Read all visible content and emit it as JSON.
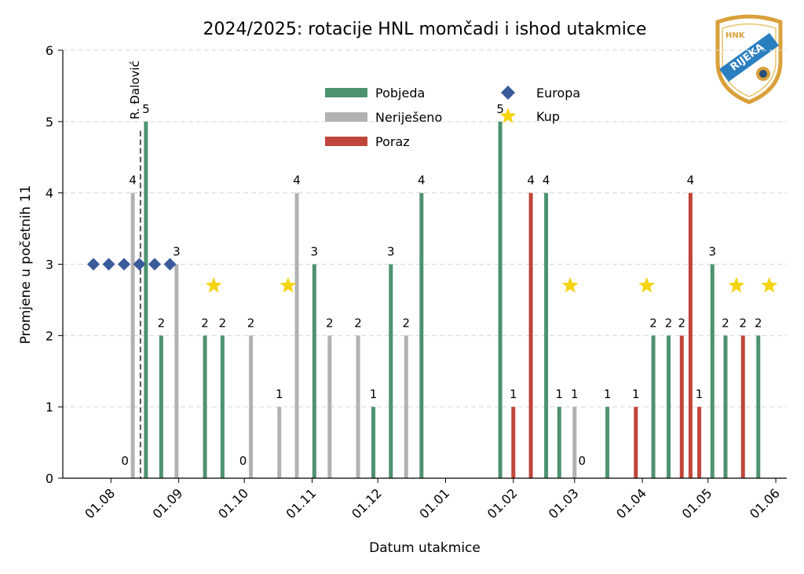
{
  "chart_data": {
    "type": "bar",
    "title": "2024/2025: rotacije HNL momčadi i ishod utakmice",
    "xlabel": "Datum utakmice",
    "ylabel": "Promjene u početnih 11",
    "ylim": [
      0,
      6
    ],
    "yticks": [
      "0",
      "1",
      "2",
      "3",
      "4",
      "5",
      "6"
    ],
    "xlim_day": [
      -5,
      326
    ],
    "xticks": [
      {
        "label": "01.08",
        "day": 17
      },
      {
        "label": "01.09",
        "day": 48
      },
      {
        "label": "01.10",
        "day": 78
      },
      {
        "label": "01.11",
        "day": 109
      },
      {
        "label": "01.12",
        "day": 139
      },
      {
        "label": "01.01",
        "day": 170
      },
      {
        "label": "01.02",
        "day": 201
      },
      {
        "label": "01.03",
        "day": 229
      },
      {
        "label": "01.04",
        "day": 260
      },
      {
        "label": "01.05",
        "day": 290
      },
      {
        "label": "01.06",
        "day": 321
      }
    ],
    "bars": [
      {
        "day": 27,
        "value": 0,
        "result": "draw"
      },
      {
        "day": 27,
        "value": 4,
        "result": "draw"
      },
      {
        "day": 33,
        "value": 5,
        "result": "win"
      },
      {
        "day": 40,
        "value": 2,
        "result": "win"
      },
      {
        "day": 47,
        "value": 3,
        "result": "draw"
      },
      {
        "day": 60,
        "value": 2,
        "result": "win"
      },
      {
        "day": 68,
        "value": 2,
        "result": "win"
      },
      {
        "day": 81,
        "value": 2,
        "result": "draw"
      },
      {
        "day": 81,
        "value": 0,
        "result": "draw"
      },
      {
        "day": 94,
        "value": 1,
        "result": "draw"
      },
      {
        "day": 102,
        "value": 4,
        "result": "draw"
      },
      {
        "day": 110,
        "value": 3,
        "result": "win"
      },
      {
        "day": 117,
        "value": 2,
        "result": "draw"
      },
      {
        "day": 130,
        "value": 2,
        "result": "draw"
      },
      {
        "day": 137,
        "value": 1,
        "result": "win"
      },
      {
        "day": 145,
        "value": 3,
        "result": "win"
      },
      {
        "day": 152,
        "value": 2,
        "result": "draw"
      },
      {
        "day": 159,
        "value": 4,
        "result": "win"
      },
      {
        "day": 195,
        "value": 5,
        "result": "win"
      },
      {
        "day": 201,
        "value": 1,
        "result": "loss"
      },
      {
        "day": 209,
        "value": 4,
        "result": "loss"
      },
      {
        "day": 216,
        "value": 4,
        "result": "win"
      },
      {
        "day": 222,
        "value": 1,
        "result": "win"
      },
      {
        "day": 229,
        "value": 1,
        "result": "draw"
      },
      {
        "day": 236,
        "value": 0,
        "result": "draw"
      },
      {
        "day": 244,
        "value": 1,
        "result": "win"
      },
      {
        "day": 257,
        "value": 1,
        "result": "loss"
      },
      {
        "day": 265,
        "value": 2,
        "result": "win"
      },
      {
        "day": 272,
        "value": 2,
        "result": "win"
      },
      {
        "day": 278,
        "value": 2,
        "result": "loss"
      },
      {
        "day": 282,
        "value": 4,
        "result": "loss"
      },
      {
        "day": 286,
        "value": 1,
        "result": "loss"
      },
      {
        "day": 292,
        "value": 3,
        "result": "win"
      },
      {
        "day": 298,
        "value": 2,
        "result": "win"
      },
      {
        "day": 306,
        "value": 2,
        "result": "loss"
      },
      {
        "day": 313,
        "value": 2,
        "result": "win"
      }
    ],
    "europa_markers": [
      {
        "day": 9,
        "value": 3
      },
      {
        "day": 16,
        "value": 3
      },
      {
        "day": 23,
        "value": 3
      },
      {
        "day": 30,
        "value": 3
      },
      {
        "day": 37,
        "value": 3
      },
      {
        "day": 44,
        "value": 3
      }
    ],
    "cup_markers": [
      {
        "day": 64,
        "value": 2.7
      },
      {
        "day": 98,
        "value": 2.7
      },
      {
        "day": 227,
        "value": 2.7
      },
      {
        "day": 262,
        "value": 2.7
      },
      {
        "day": 303,
        "value": 2.7
      },
      {
        "day": 318,
        "value": 2.7
      }
    ],
    "coach_line": {
      "day": 30.5,
      "label": "R. Đalović"
    },
    "legend": [
      {
        "key": "win",
        "label": "Pobjeda",
        "kind": "bar"
      },
      {
        "key": "draw",
        "label": "Neriješeno",
        "kind": "bar"
      },
      {
        "key": "loss",
        "label": "Poraz",
        "kind": "bar"
      },
      {
        "key": "europa",
        "label": "Europa",
        "kind": "diamond"
      },
      {
        "key": "cup",
        "label": "Kup",
        "kind": "star"
      }
    ],
    "legend_position": "top-center",
    "colors": {
      "win": "#4e9270",
      "draw": "#b2b2b2",
      "loss": "#c0453a",
      "europa": "#3a5a9a",
      "cup": "#f5d40f",
      "grid": "#d6d6d6",
      "coach_line": "#555555"
    },
    "logo": {
      "text": "HNK RIJEKA"
    }
  }
}
